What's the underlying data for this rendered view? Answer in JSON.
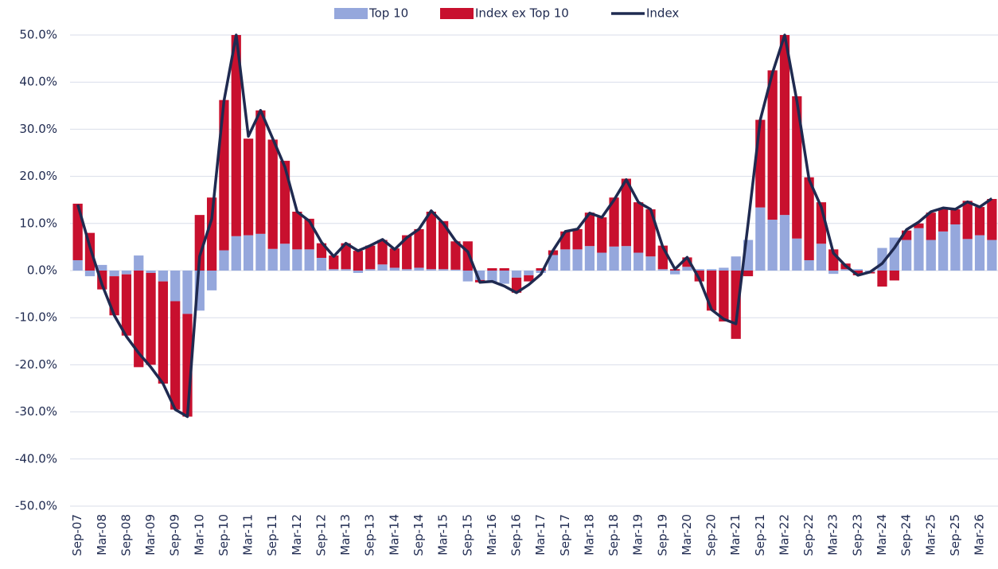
{
  "chart_data": {
    "type": "bar",
    "stacked": true,
    "categories": [
      "Sep-07",
      null,
      "Mar-08",
      null,
      "Sep-08",
      null,
      "Mar-09",
      null,
      "Sep-09",
      null,
      "Mar-10",
      null,
      "Sep-10",
      null,
      "Mar-11",
      null,
      "Sep-11",
      null,
      "Mar-12",
      null,
      "Sep-12",
      null,
      "Mar-13",
      null,
      "Sep-13",
      null,
      "Mar-14",
      null,
      "Sep-14",
      null,
      "Mar-15",
      null,
      "Sep-15",
      null,
      "Mar-16",
      null,
      "Sep-16",
      null,
      "Mar-17",
      null,
      "Sep-17",
      null,
      "Mar-18",
      null,
      "Sep-18",
      null,
      "Mar-19",
      null,
      "Sep-19",
      null,
      "Mar-20",
      null,
      "Sep-20",
      null,
      "Mar-21",
      null,
      "Sep-21",
      null,
      "Mar-22",
      null,
      "Sep-22",
      null,
      "Mar-23",
      null,
      "Sep-23",
      null,
      "Mar-24",
      null,
      "Sep-24",
      null,
      "Mar-25",
      null,
      "Sep-25",
      null,
      "Mar-26",
      null
    ],
    "series": [
      {
        "name": "Top 10",
        "type": "bar",
        "color": "#95a7dc",
        "values": [
          2.2,
          -1.2,
          1.2,
          -1.2,
          -0.8,
          3.2,
          -0.5,
          -2.3,
          -6.5,
          -9.2,
          -8.5,
          -4.2,
          4.3,
          7.3,
          7.5,
          7.8,
          4.6,
          5.7,
          4.5,
          4.5,
          2.7,
          0.3,
          0.3,
          -0.5,
          0.3,
          1.3,
          0.6,
          0.3,
          0.6,
          0.3,
          0.3,
          0.2,
          -2.3,
          -2,
          -2.5,
          -2.8,
          -1.5,
          -1,
          -0.5,
          3.3,
          4.5,
          4.5,
          5.2,
          3.8,
          5.1,
          5.2,
          3.8,
          3,
          0.3,
          -0.8,
          0.8,
          0.3,
          0.3,
          0.6,
          3,
          6.5,
          13.4,
          10.8,
          11.8,
          6.8,
          2.2,
          5.7,
          -0.7,
          0.3,
          0.3,
          -0.3,
          4.8,
          7,
          6.5,
          9,
          6.5,
          8.3,
          9.8,
          6.7,
          7.5,
          6.5
        ]
      },
      {
        "name": "Index ex Top 10",
        "type": "bar",
        "color": "#c8102e",
        "values": [
          12,
          8,
          -4,
          -8.3,
          -13,
          -20.5,
          -19.5,
          -21.7,
          -23,
          -21.8,
          11.8,
          15.5,
          31.9,
          42.7,
          20.5,
          26.2,
          23.2,
          17.6,
          8,
          6.5,
          3.1,
          2.9,
          5.5,
          4.2,
          5,
          5.2,
          4.1,
          7.2,
          8.2,
          12.2,
          10.2,
          6,
          6.2,
          -0.5,
          0.5,
          0.5,
          -3.2,
          -1.3,
          0.5,
          1,
          3.8,
          4.3,
          7.1,
          7.5,
          10.4,
          14.3,
          10.7,
          10,
          5,
          0.3,
          2,
          -2.3,
          -8.5,
          -10.8,
          -14.5,
          -1.2,
          18.6,
          31.7,
          38.2,
          30.2,
          17.6,
          8.8,
          4.5,
          1.2,
          -1,
          -0.3,
          -3.4,
          -2.1,
          2,
          1,
          5.8,
          4.7,
          3.2,
          8.1,
          6,
          8.7
        ]
      },
      {
        "name": "Index",
        "type": "line",
        "color": "#1f2a50",
        "values": [
          14,
          5,
          -3,
          -9.5,
          -14,
          -17.5,
          -20.5,
          -24,
          -29.5,
          -31,
          3,
          11,
          36,
          50,
          28.5,
          34,
          28,
          22,
          12.5,
          10.5,
          6,
          3,
          5.8,
          4.2,
          5.3,
          6.6,
          4.5,
          7,
          8.8,
          12.7,
          10,
          6.3,
          4,
          -2.5,
          -2.3,
          -3.3,
          -4.7,
          -3,
          -0.8,
          4.3,
          8.3,
          8.8,
          12.2,
          11.3,
          15,
          19.3,
          14.5,
          13,
          5,
          0.3,
          2.8,
          -1.8,
          -8.3,
          -10.3,
          -11.3,
          10,
          32,
          42,
          50,
          36,
          19.3,
          13.5,
          3.7,
          1,
          -1,
          -0.3,
          1.5,
          4.8,
          8.7,
          10.3,
          12.5,
          13.3,
          13,
          14.6,
          13.5,
          15.3
        ]
      }
    ],
    "ylim": [
      -50,
      50
    ],
    "yticks": [
      {
        "value": -50,
        "label": "-50.0%"
      },
      {
        "value": -40,
        "label": "-40.0%"
      },
      {
        "value": -30,
        "label": "-30.0%"
      },
      {
        "value": -20,
        "label": "-20.0%"
      },
      {
        "value": -10,
        "label": "-10.0%"
      },
      {
        "value": 0,
        "label": "0.0%"
      },
      {
        "value": 10,
        "label": "10.0%"
      },
      {
        "value": 20,
        "label": "20.0%"
      },
      {
        "value": 30,
        "label": "30.0%"
      },
      {
        "value": 40,
        "label": "40.0%"
      },
      {
        "value": 50,
        "label": "50.0%"
      }
    ],
    "grid": true,
    "legend": "top"
  }
}
